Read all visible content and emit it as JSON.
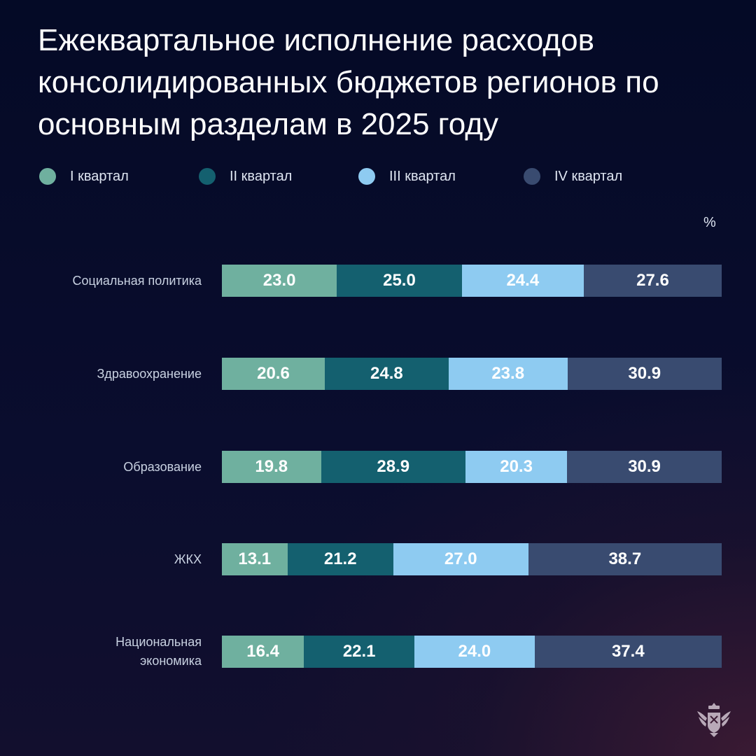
{
  "chart_data": {
    "type": "bar",
    "orientation": "horizontal",
    "stacked": true,
    "title": "Ежеквартальное исполнение расходов консолидированных бюджетов регионов по основным разделам в 2025 году",
    "unit": "%",
    "categories": [
      "Социальная политика",
      "Здравоохранение",
      "Образование",
      "ЖКХ",
      "Национальная экономика"
    ],
    "series": [
      {
        "name": "I квартал",
        "color": "#6fb09f",
        "values": [
          23.0,
          20.6,
          19.8,
          13.1,
          16.4
        ]
      },
      {
        "name": "II квартал",
        "color": "#14606f",
        "values": [
          25.0,
          24.8,
          28.9,
          21.2,
          22.1
        ]
      },
      {
        "name": "III квартал",
        "color": "#8ecbf1",
        "values": [
          24.4,
          23.8,
          20.3,
          27.0,
          24.0
        ]
      },
      {
        "name": "IV квартал",
        "color": "#394b70",
        "values": [
          27.6,
          30.9,
          30.9,
          38.7,
          37.4
        ]
      }
    ],
    "legend_position": "top",
    "grid": false,
    "xlim": [
      0,
      100
    ]
  },
  "logo": {
    "name": "double-headed-eagle-emblem",
    "color": "#b8a9b8"
  }
}
